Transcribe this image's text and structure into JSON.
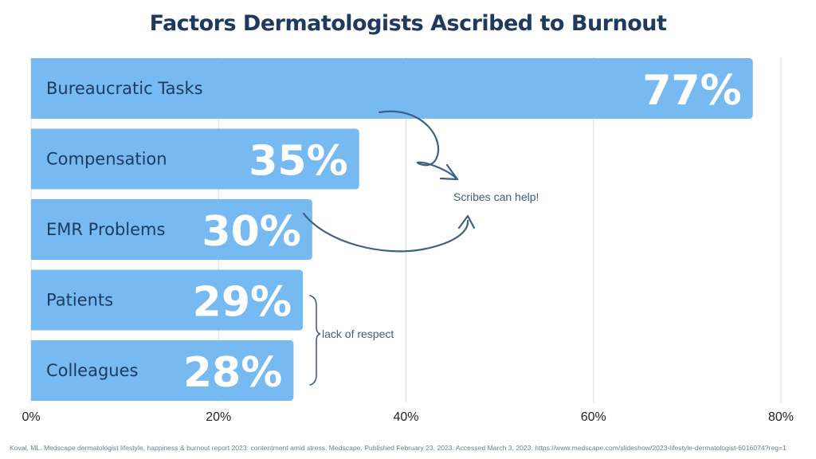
{
  "colors": {
    "bar": "#77b9f1",
    "title": "#1e3a5f",
    "bar_label": "#1f3a5f",
    "value_label": "#ffffff",
    "grid": "#dddddd",
    "annotation": "#3e5f86",
    "tick": "#222222"
  },
  "chart_data": {
    "type": "bar",
    "orientation": "horizontal",
    "title": "Factors Dermatologists Ascribed to Burnout",
    "xlabel": "",
    "ylabel": "",
    "xlim": [
      0,
      80
    ],
    "x_ticks": [
      {
        "value": 0,
        "label": "0%"
      },
      {
        "value": 20,
        "label": "20%"
      },
      {
        "value": 40,
        "label": "40%"
      },
      {
        "value": 60,
        "label": "60%"
      },
      {
        "value": 80,
        "label": "80%"
      }
    ],
    "grid": true,
    "bars": [
      {
        "category": "Bureaucratic Tasks",
        "value": 77,
        "label": "77%"
      },
      {
        "category": "Compensation",
        "value": 35,
        "label": "35%"
      },
      {
        "category": "EMR Problems",
        "value": 30,
        "label": "30%"
      },
      {
        "category": "Patients",
        "value": 29,
        "label": "29%"
      },
      {
        "category": "Colleagues",
        "value": 28,
        "label": "28%"
      }
    ],
    "annotations": [
      {
        "text": "Scribes can help!",
        "refers_to": [
          "Bureaucratic Tasks",
          "EMR Problems"
        ]
      },
      {
        "text": "lack of respect",
        "refers_to": [
          "Patients",
          "Colleagues"
        ]
      }
    ]
  },
  "source": "Koval, ML. Medscape dermatologist lifestyle, happiness & burnout report 2023: contentment amid stress. Medscape. Published February 23, 2023. Accessed March 3, 2023. https://www.medscape.com/slideshow/2023-lifestyle-dermatologist-6016074?reg=1"
}
